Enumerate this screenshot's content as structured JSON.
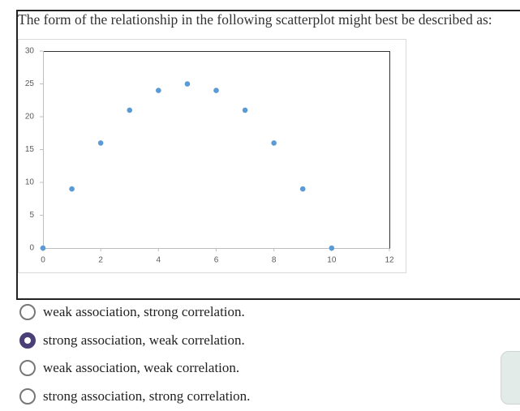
{
  "question": "The form of the relationship in the following scatterplot might best be described as:",
  "chart_data": {
    "type": "scatter",
    "x": [
      0,
      1,
      2,
      3,
      4,
      5,
      6,
      7,
      8,
      9,
      10
    ],
    "values": [
      0,
      9,
      16,
      21,
      24,
      25,
      24,
      21,
      16,
      9,
      0
    ],
    "color": "#5b9bd5",
    "xlim": [
      0,
      12
    ],
    "xticks": [
      0,
      2,
      4,
      6,
      8,
      10,
      12
    ],
    "ylim": [
      0,
      30
    ],
    "yticks": [
      0,
      5,
      10,
      15,
      20,
      25,
      30
    ]
  },
  "options": [
    "weak association, strong correlation.",
    "strong association, weak correlation.",
    "weak association, weak correlation.",
    "strong association, strong correlation."
  ],
  "selected": 1
}
